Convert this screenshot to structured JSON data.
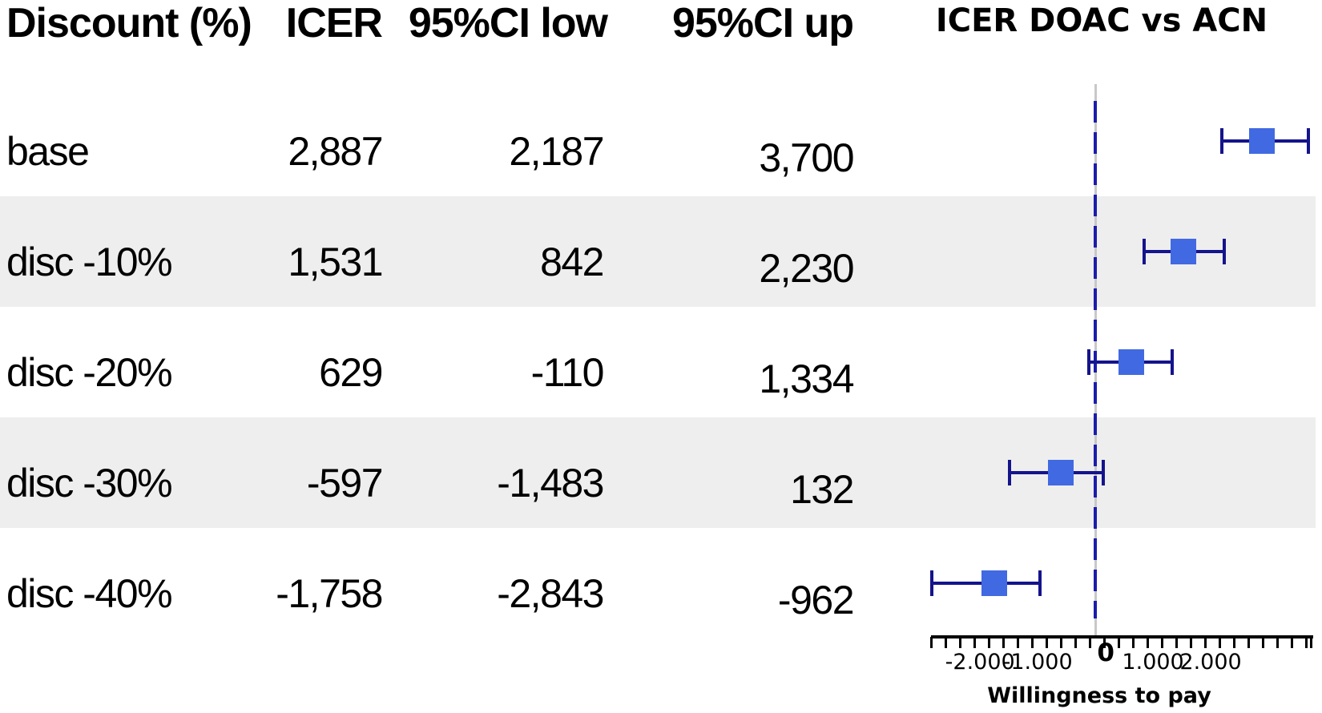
{
  "table": {
    "columns": [
      {
        "label": "Discount (%)"
      },
      {
        "label": "ICER"
      },
      {
        "label": "95%CI low"
      },
      {
        "label": "95%CI up"
      }
    ],
    "rows": [
      {
        "label": "base",
        "icer": "2,887",
        "ci_low": "2,187",
        "ci_up": "3,700",
        "shaded": false
      },
      {
        "label": "disc -10%",
        "icer": "1,531",
        "ci_low": "842",
        "ci_up": "2,230",
        "shaded": true
      },
      {
        "label": "disc -20%",
        "icer": "629",
        "ci_low": "-110",
        "ci_up": "1,334",
        "shaded": false
      },
      {
        "label": "disc -30%",
        "icer": "-597",
        "ci_low": "-1,483",
        "ci_up": "132",
        "shaded": true
      },
      {
        "label": "disc -40%",
        "icer": "-1,758",
        "ci_low": "-2,843",
        "ci_up": "-962",
        "shaded": false
      }
    ]
  },
  "chart_data": {
    "type": "scatter",
    "subtype": "forest-plot-with-error-bars",
    "title": "ICER DOAC vs ACN",
    "xlabel": "Willingness to pay",
    "categories": [
      "base",
      "disc -10%",
      "disc -20%",
      "disc -30%",
      "disc -40%"
    ],
    "series": [
      {
        "name": "ICER",
        "values": [
          2887,
          1531,
          629,
          -597,
          -1758
        ]
      },
      {
        "name": "95%CI low",
        "values": [
          2187,
          842,
          -110,
          -1483,
          -2843
        ]
      },
      {
        "name": "95%CI up",
        "values": [
          3700,
          2230,
          1334,
          132,
          -962
        ]
      }
    ],
    "xlim": [
      -2850,
      3750
    ],
    "minor_tick_step": 250,
    "x_major_ticks": [
      -2000,
      -1000,
      0,
      1000,
      2000
    ],
    "x_tick_labels": [
      "-2.000",
      "-1.000",
      "0",
      "1.000",
      "2.000"
    ],
    "zero_reference_line": {
      "value": 0,
      "style": "dashed"
    },
    "grid": false,
    "legend": "none"
  },
  "colors": {
    "marker": "#4169e1",
    "error_bar": "#14148c",
    "zero_line_dash": "#1c1caa",
    "zero_line_end": "#c8c8c8",
    "stripe": "#eeeeee",
    "axis": "#000000",
    "text": "#000000"
  }
}
